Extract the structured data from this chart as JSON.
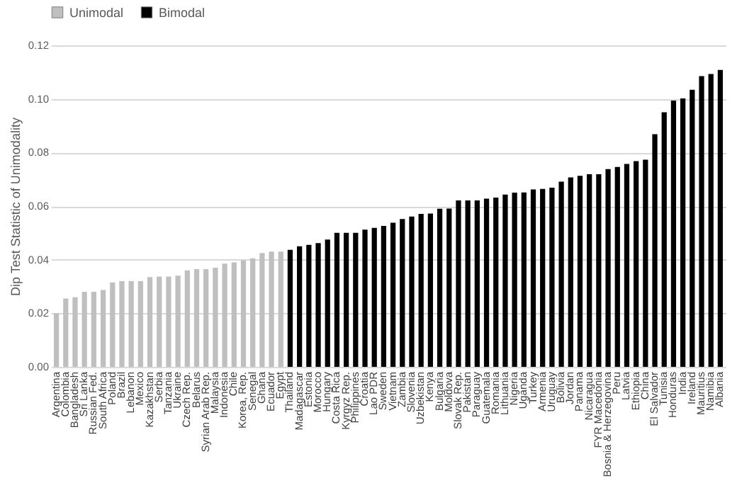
{
  "chart_data": {
    "type": "bar",
    "ylabel": "Dip Test Statistic of Unimodality",
    "categories": [
      "Argentina",
      "Colombia",
      "Bangladesh",
      "Sri Lanka",
      "Russian Fed.",
      "South Africa",
      "Poland",
      "Brazil",
      "Lebanon",
      "Mexico",
      "Kazakhstan",
      "Serbia",
      "Tanzania",
      "Ukraine",
      "Czech Rep.",
      "Belarus",
      "Syrian Arab Rep.",
      "Malaysia",
      "Indonesia",
      "Chile",
      "Korea, Rep.",
      "Senegal",
      "Ghana",
      "Ecuador",
      "Egypt",
      "Thailand",
      "Madagascar",
      "Estonia",
      "Morocco",
      "Hungary",
      "Costa Rica",
      "Kyrgyz Rep.",
      "Philippines",
      "Croatia",
      "Lao PDR",
      "Sweden",
      "Vietnam",
      "Zambia",
      "Slovenia",
      "Uzbekistan",
      "Kenya",
      "Bulgaria",
      "Moldova",
      "Slovak Rep.",
      "Pakistan",
      "Paraguay",
      "Guatemala",
      "Romania",
      "Lithuania",
      "Nigeria",
      "Uganda",
      "Turkey",
      "Armenia",
      "Uruguay",
      "Bolivia",
      "Jordan",
      "Panama",
      "Nicaragua",
      "FYR Macedonia",
      "Bosnia & Herzegovina",
      "Peru",
      "Latvia",
      "Ethiopia",
      "China",
      "El Salvador",
      "Tunisia",
      "Honduras",
      "India",
      "Ireland",
      "Mauritius",
      "Namibia",
      "Albania"
    ],
    "series": [
      {
        "name": "Unimodal",
        "color": "#bfbfbf",
        "values": [
          0.02,
          0.0255,
          0.026,
          0.028,
          0.028,
          0.0287,
          0.0315,
          0.032,
          0.032,
          0.032,
          0.0335,
          0.0337,
          0.0337,
          0.034,
          0.036,
          0.0365,
          0.0365,
          0.037,
          0.0385,
          0.039,
          0.0398,
          0.0405,
          0.0425,
          0.043,
          0.043,
          null,
          null,
          null,
          null,
          null,
          null,
          null,
          null,
          null,
          null,
          null,
          null,
          null,
          null,
          null,
          null,
          null,
          null,
          null,
          null,
          null,
          null,
          null,
          null,
          null,
          null,
          null,
          null,
          null,
          null,
          null,
          null,
          null,
          null,
          null,
          null,
          null,
          null,
          null,
          null,
          null,
          null,
          null,
          null,
          null,
          null,
          null
        ]
      },
      {
        "name": "Bimodal",
        "color": "#000000",
        "values": [
          null,
          null,
          null,
          null,
          null,
          null,
          null,
          null,
          null,
          null,
          null,
          null,
          null,
          null,
          null,
          null,
          null,
          null,
          null,
          null,
          null,
          null,
          null,
          null,
          null,
          0.0437,
          0.045,
          0.0455,
          0.0462,
          0.0475,
          0.05,
          0.05,
          0.05,
          0.0512,
          0.0519,
          0.0526,
          0.0538,
          0.0552,
          0.0561,
          0.0571,
          0.0572,
          0.059,
          0.0591,
          0.0621,
          0.0621,
          0.0621,
          0.0628,
          0.0632,
          0.0643,
          0.065,
          0.0651,
          0.0662,
          0.0664,
          0.0669,
          0.0691,
          0.0707,
          0.0713,
          0.0719,
          0.0719,
          0.0738,
          0.0746,
          0.0757,
          0.0768,
          0.0773,
          0.0868,
          0.095,
          0.0994,
          0.1002,
          0.1034,
          0.1085,
          0.1093,
          0.1108
        ]
      }
    ],
    "ylim": [
      0,
      0.12
    ],
    "yticks": [
      {
        "value": 0,
        "label": "0.00"
      },
      {
        "value": 0.02,
        "label": "0.02"
      },
      {
        "value": 0.04,
        "label": "0.04"
      },
      {
        "value": 0.06,
        "label": "0.06"
      },
      {
        "value": 0.08,
        "label": "0.08"
      },
      {
        "value": 0.1,
        "label": "0.10"
      },
      {
        "value": 0.12,
        "label": "0.12"
      }
    ],
    "grid": "y",
    "legend": "top"
  }
}
